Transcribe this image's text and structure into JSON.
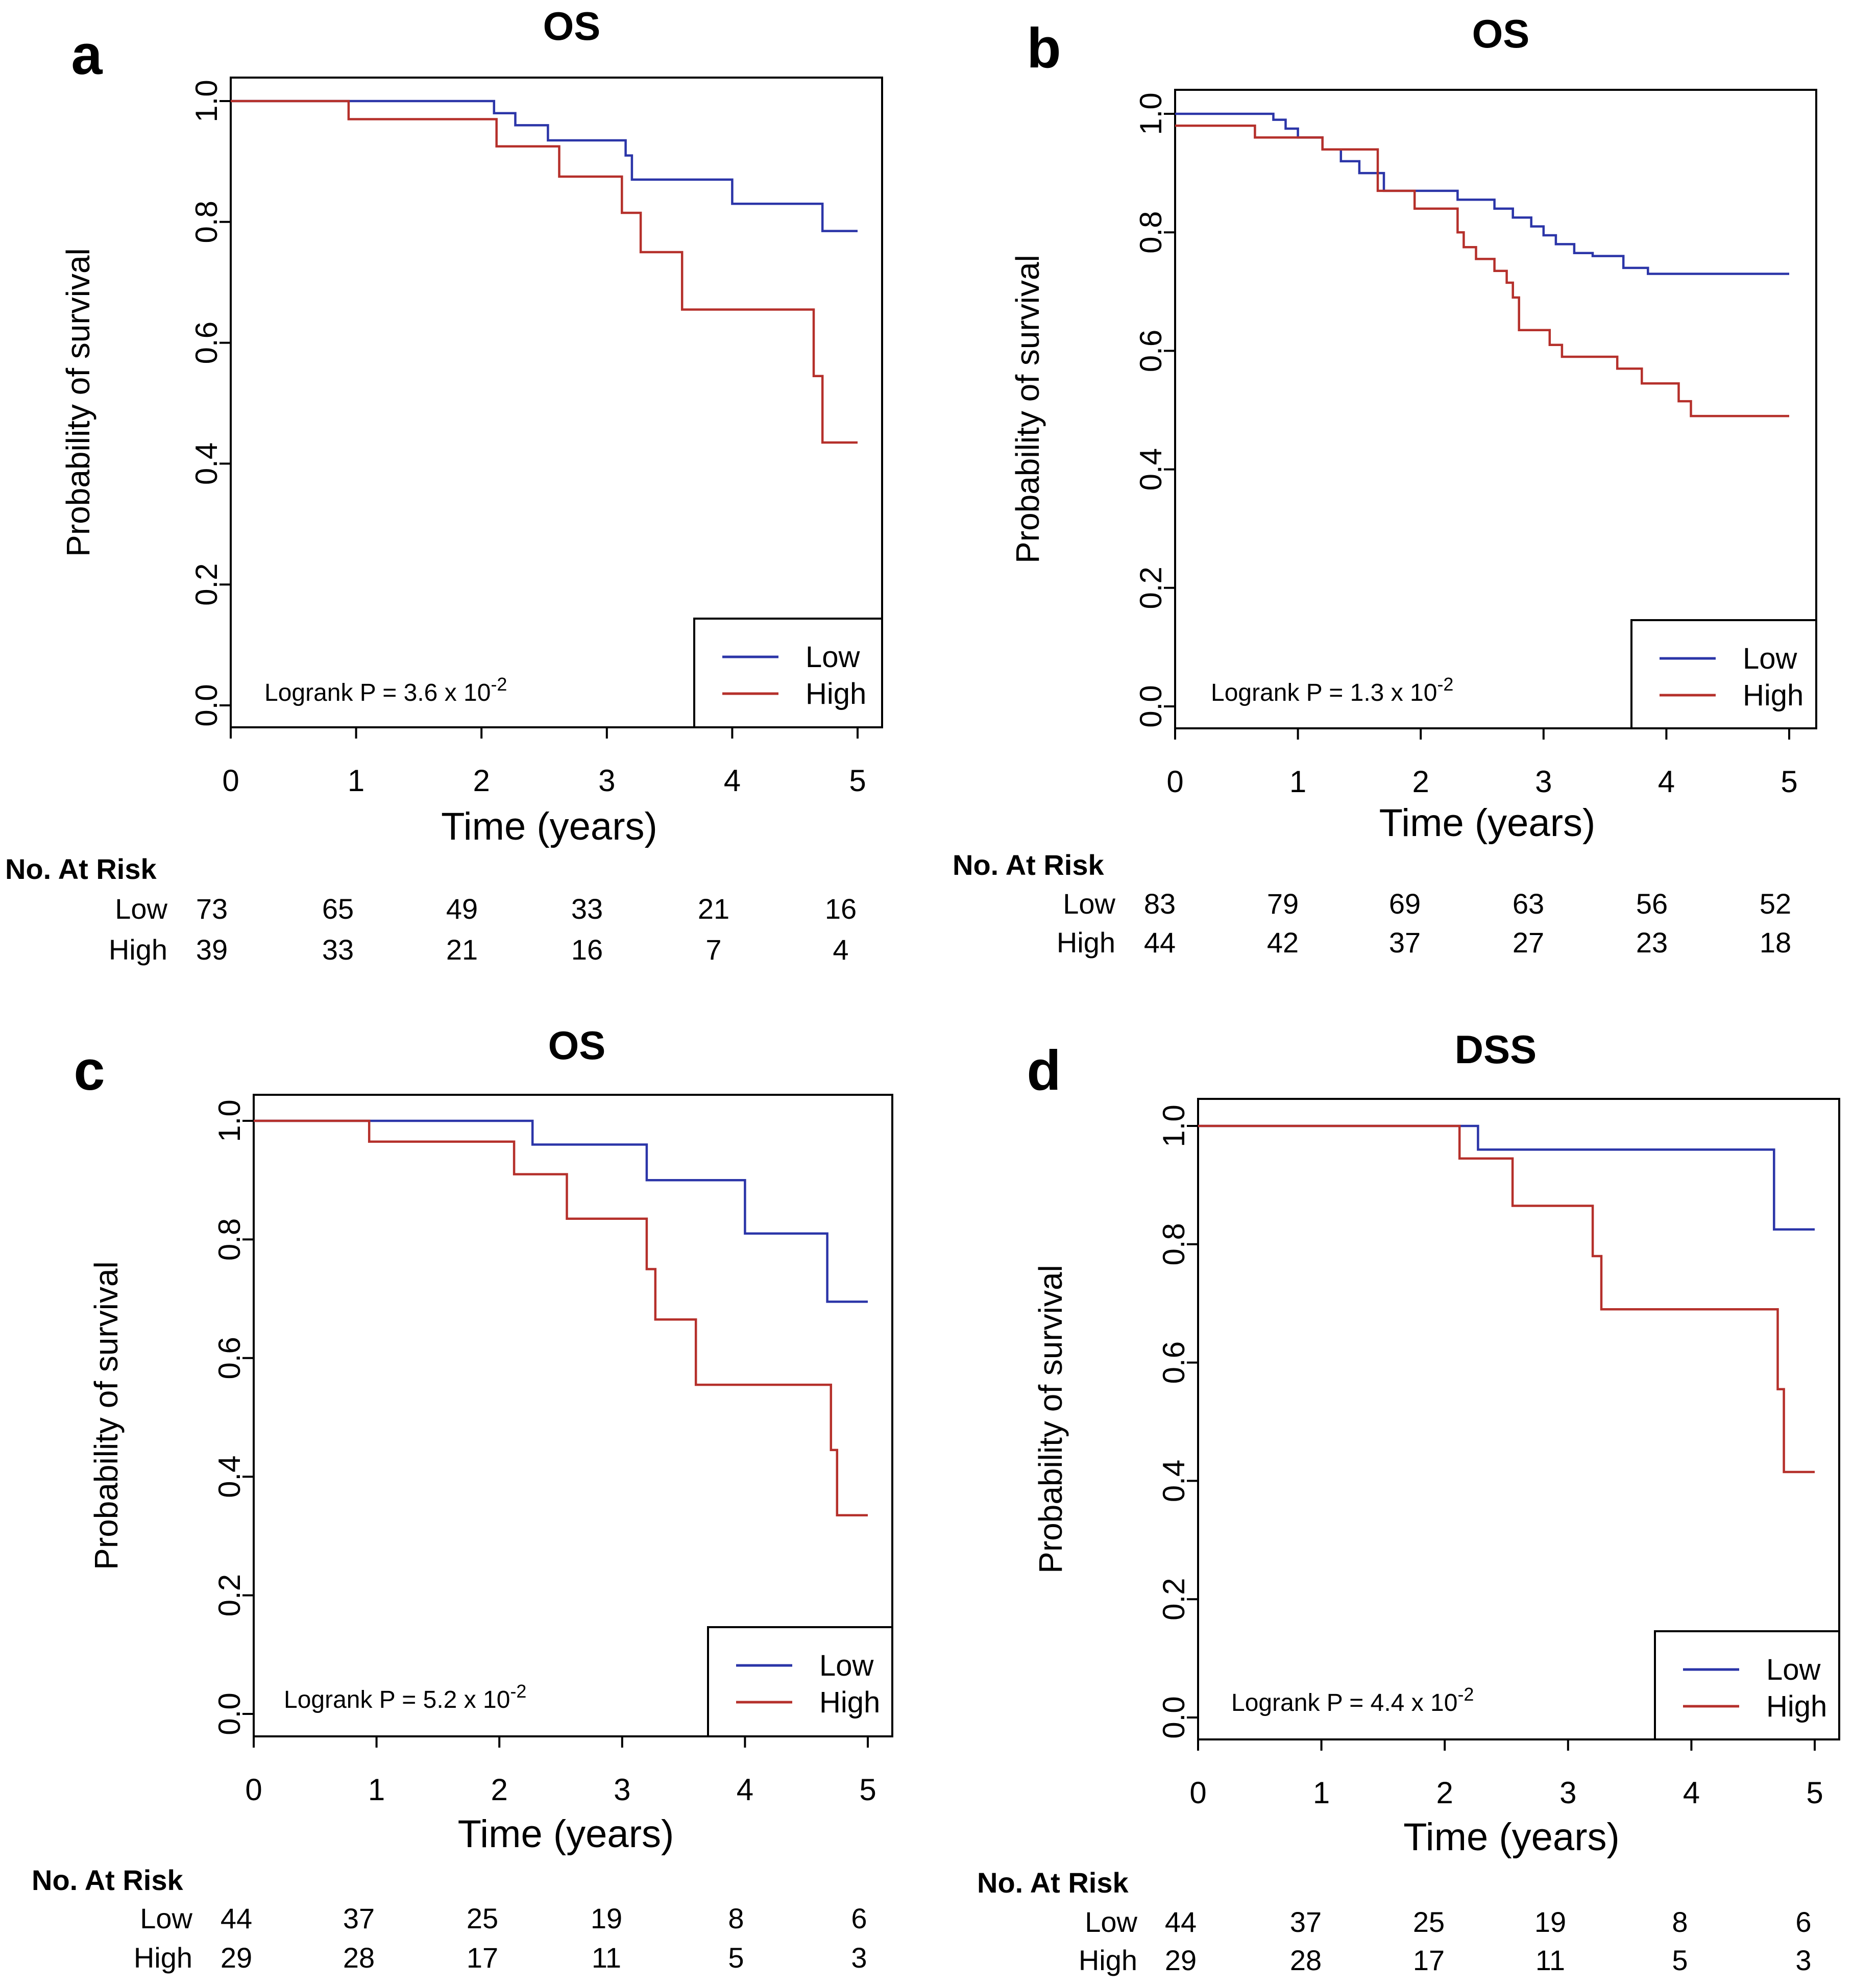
{
  "chart_data": [
    {
      "type": "line",
      "panel": "a",
      "title": "OS",
      "xlabel": "Time (years)",
      "ylabel": "Probability of survival",
      "xlim": [
        0,
        5
      ],
      "ylim": [
        0,
        1
      ],
      "x_ticks": [
        "0",
        "1",
        "2",
        "3",
        "4",
        "5"
      ],
      "y_ticks": [
        "0.0",
        "0.2",
        "0.4",
        "0.6",
        "0.8",
        "1.0"
      ],
      "legend_position": "bottom-right",
      "annotation": {
        "text": "Logrank P = 3.6 x 10",
        "exponent": "-2"
      },
      "series": [
        {
          "name": "Low",
          "color": "#2b35a8",
          "x": [
            0,
            2.1,
            2.27,
            2.53,
            3.15,
            3.2,
            4.0,
            4.72,
            5.0
          ],
          "y": [
            1.0,
            0.98,
            0.96,
            0.935,
            0.91,
            0.87,
            0.83,
            0.785,
            0.785
          ]
        },
        {
          "name": "High",
          "color": "#b5302b",
          "x": [
            0,
            0.94,
            2.12,
            2.62,
            3.12,
            3.27,
            3.6,
            4.65,
            4.72,
            5.0
          ],
          "y": [
            1.0,
            0.97,
            0.925,
            0.875,
            0.815,
            0.75,
            0.655,
            0.545,
            0.435,
            0.435
          ]
        }
      ],
      "risk_table": {
        "title": "No. At Risk",
        "rows": [
          {
            "label": "Low",
            "values": [
              "73",
              "65",
              "49",
              "33",
              "21",
              "16"
            ]
          },
          {
            "label": "High",
            "values": [
              "39",
              "33",
              "21",
              "16",
              "7",
              "4"
            ]
          }
        ]
      }
    },
    {
      "type": "line",
      "panel": "b",
      "title": "OS",
      "xlabel": "Time (years)",
      "ylabel": "Probability of survival",
      "xlim": [
        0,
        5
      ],
      "ylim": [
        0,
        1
      ],
      "x_ticks": [
        "0",
        "1",
        "2",
        "3",
        "4",
        "5"
      ],
      "y_ticks": [
        "0.0",
        "0.2",
        "0.4",
        "0.6",
        "0.8",
        "1.0"
      ],
      "legend_position": "bottom-right",
      "annotation": {
        "text": "Logrank P = 1.3 x 10",
        "exponent": "-2"
      },
      "series": [
        {
          "name": "Low",
          "color": "#2b35a8",
          "x": [
            0,
            0.8,
            0.9,
            1.0,
            1.2,
            1.35,
            1.5,
            1.7,
            2.3,
            2.6,
            2.75,
            2.9,
            3.0,
            3.1,
            3.25,
            3.4,
            3.65,
            3.85,
            5.0
          ],
          "y": [
            1.0,
            0.99,
            0.975,
            0.96,
            0.94,
            0.92,
            0.9,
            0.87,
            0.855,
            0.84,
            0.825,
            0.81,
            0.795,
            0.78,
            0.765,
            0.76,
            0.74,
            0.73,
            0.73
          ]
        },
        {
          "name": "High",
          "color": "#b5302b",
          "x": [
            0,
            0.35,
            0.65,
            1.2,
            1.65,
            1.95,
            2.3,
            2.35,
            2.45,
            2.6,
            2.7,
            2.75,
            2.8,
            3.05,
            3.15,
            3.6,
            3.8,
            4.1,
            4.2,
            5.0
          ],
          "y": [
            0.98,
            0.98,
            0.96,
            0.94,
            0.87,
            0.84,
            0.8,
            0.775,
            0.755,
            0.735,
            0.715,
            0.69,
            0.635,
            0.61,
            0.59,
            0.57,
            0.545,
            0.515,
            0.49,
            0.49
          ]
        }
      ],
      "risk_table": {
        "title": "No. At Risk",
        "rows": [
          {
            "label": "Low",
            "values": [
              "83",
              "79",
              "69",
              "63",
              "56",
              "52"
            ]
          },
          {
            "label": "High",
            "values": [
              "44",
              "42",
              "37",
              "27",
              "23",
              "18"
            ]
          }
        ]
      }
    },
    {
      "type": "line",
      "panel": "c",
      "title": "OS",
      "xlabel": "Time (years)",
      "ylabel": "Probability of survival",
      "xlim": [
        0,
        5
      ],
      "ylim": [
        0,
        1
      ],
      "x_ticks": [
        "0",
        "1",
        "2",
        "3",
        "4",
        "5"
      ],
      "y_ticks": [
        "0.0",
        "0.2",
        "0.4",
        "0.6",
        "0.8",
        "1.0"
      ],
      "legend_position": "bottom-right",
      "annotation": {
        "text": "Logrank P = 5.2 x 10",
        "exponent": "-2"
      },
      "series": [
        {
          "name": "Low",
          "color": "#2b35a8",
          "x": [
            0,
            2.27,
            3.2,
            4.0,
            4.67,
            5.0
          ],
          "y": [
            1.0,
            0.96,
            0.9,
            0.81,
            0.695,
            0.695
          ]
        },
        {
          "name": "High",
          "color": "#b5302b",
          "x": [
            0,
            0.94,
            2.12,
            2.55,
            3.2,
            3.27,
            3.6,
            4.7,
            4.75,
            5.0
          ],
          "y": [
            1.0,
            0.965,
            0.91,
            0.835,
            0.75,
            0.665,
            0.555,
            0.445,
            0.335,
            0.335
          ]
        }
      ],
      "risk_table": {
        "title": "No. At Risk",
        "rows": [
          {
            "label": "Low",
            "values": [
              "44",
              "37",
              "25",
              "19",
              "8",
              "6"
            ]
          },
          {
            "label": "High",
            "values": [
              "29",
              "28",
              "17",
              "11",
              "5",
              "3"
            ]
          }
        ]
      }
    },
    {
      "type": "line",
      "panel": "d",
      "title": "DSS",
      "xlabel": "Time (years)",
      "ylabel": "Probability of survival",
      "xlim": [
        0,
        5
      ],
      "ylim": [
        0,
        1
      ],
      "x_ticks": [
        "0",
        "1",
        "2",
        "3",
        "4",
        "5"
      ],
      "y_ticks": [
        "0.0",
        "0.2",
        "0.4",
        "0.6",
        "0.8",
        "1.0"
      ],
      "legend_position": "bottom-right",
      "annotation": {
        "text": "Logrank P = 4.4 x 10",
        "exponent": "-2"
      },
      "series": [
        {
          "name": "Low",
          "color": "#2b35a8",
          "x": [
            0,
            2.27,
            4.67,
            5.0
          ],
          "y": [
            1.0,
            0.96,
            0.825,
            0.825
          ]
        },
        {
          "name": "High",
          "color": "#b5302b",
          "x": [
            0,
            2.12,
            2.55,
            3.2,
            3.27,
            4.7,
            4.75,
            5.0
          ],
          "y": [
            1.0,
            0.945,
            0.865,
            0.78,
            0.69,
            0.555,
            0.415,
            0.415
          ]
        }
      ],
      "risk_table": {
        "title": "No. At Risk",
        "rows": [
          {
            "label": "Low",
            "values": [
              "44",
              "37",
              "25",
              "19",
              "8",
              "6"
            ]
          },
          {
            "label": "High",
            "values": [
              "29",
              "28",
              "17",
              "11",
              "5",
              "3"
            ]
          }
        ]
      }
    }
  ]
}
